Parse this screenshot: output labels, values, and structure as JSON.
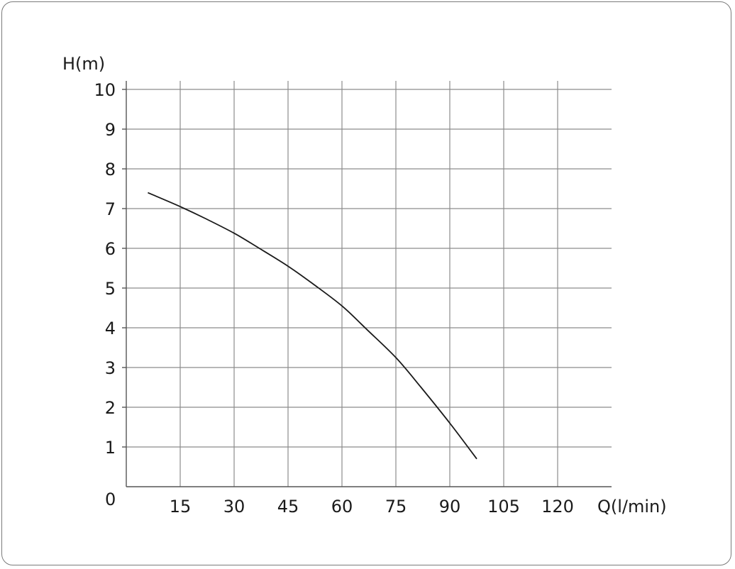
{
  "chart_data": {
    "type": "line",
    "title": "",
    "xlabel": "Q(l/min)",
    "ylabel": "H(m)",
    "xlim": [
      0,
      135
    ],
    "ylim": [
      0,
      10
    ],
    "x_ticks": [
      "15",
      "30",
      "45",
      "60",
      "75",
      "90",
      "105",
      "120"
    ],
    "x_tick_values": [
      15,
      30,
      45,
      60,
      75,
      90,
      105,
      120
    ],
    "y_ticks": [
      "1",
      "2",
      "3",
      "4",
      "5",
      "6",
      "7",
      "8",
      "9",
      "10"
    ],
    "y_tick_values": [
      1,
      2,
      3,
      4,
      5,
      6,
      7,
      8,
      9,
      10
    ],
    "origin_label": "0",
    "grid": true,
    "series": [
      {
        "x": [
          6,
          15,
          22,
          30,
          37,
          45,
          52,
          60,
          67,
          75,
          82,
          90,
          97.5
        ],
        "y": [
          7.4,
          7.05,
          6.75,
          6.38,
          6.0,
          5.55,
          5.1,
          4.55,
          3.95,
          3.25,
          2.5,
          1.6,
          0.7
        ]
      }
    ]
  }
}
